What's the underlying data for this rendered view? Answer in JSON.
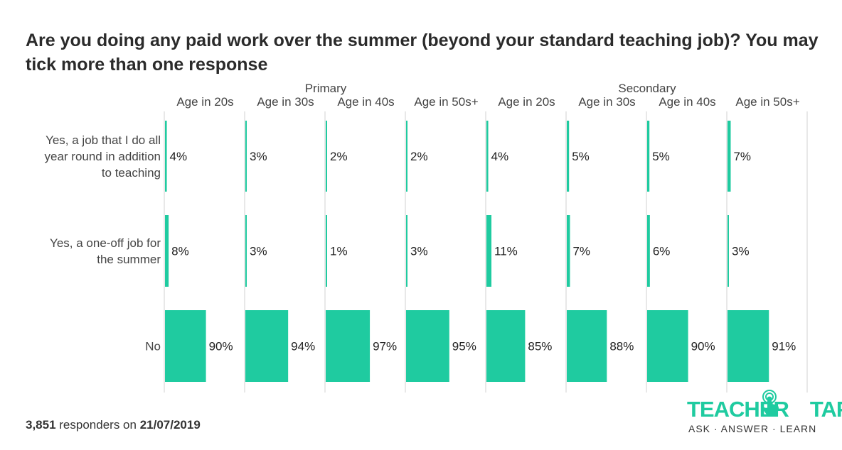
{
  "title": "Are you doing any paid work over the summer (beyond your standard teaching job)? You may tick more than one response",
  "footer": {
    "count": "3,851",
    "middle": " responders on ",
    "date": "21/07/2019"
  },
  "logo": {
    "brand_left": "TEACHER",
    "brand_right": "TAPP",
    "tagline": "ASK · ANSWER · LEARN"
  },
  "colors": {
    "bar": "#1fcba0",
    "grid": "#d0d0d0",
    "text": "#444444"
  },
  "chart_data": {
    "type": "bar",
    "orientation": "horizontal",
    "title": "Are you doing any paid work over the summer (beyond your standard teaching job)? You may tick more than one response",
    "groups": [
      {
        "name": "Primary",
        "columns": [
          "Age in 20s",
          "Age in 30s",
          "Age in 40s",
          "Age in 50s+"
        ]
      },
      {
        "name": "Secondary",
        "columns": [
          "Age in 20s",
          "Age in 30s",
          "Age in 40s",
          "Age in 50s+"
        ]
      }
    ],
    "rows": [
      {
        "label": "Yes, a job that I do all year round in addition to teaching",
        "lines": [
          "Yes, a job that I do all",
          "year round in addition",
          "to teaching"
        ],
        "values": [
          4,
          3,
          2,
          2,
          4,
          5,
          5,
          7
        ],
        "labels": [
          "4%",
          "3%",
          "2%",
          "2%",
          "4%",
          "5%",
          "5%",
          "7%"
        ]
      },
      {
        "label": "Yes, a one-off job for the summer",
        "lines": [
          "Yes, a one-off job for",
          "the summer"
        ],
        "values": [
          8,
          3,
          1,
          3,
          11,
          7,
          6,
          3
        ],
        "labels": [
          "8%",
          "3%",
          "1%",
          "3%",
          "11%",
          "7%",
          "6%",
          "3%"
        ]
      },
      {
        "label": "No",
        "lines": [
          "No"
        ],
        "values": [
          90,
          94,
          97,
          95,
          85,
          88,
          90,
          91
        ],
        "labels": [
          "90%",
          "94%",
          "97%",
          "95%",
          "85%",
          "88%",
          "90%",
          "91%"
        ]
      }
    ],
    "xlim": [
      0,
      100
    ],
    "value_unit": "%",
    "grid": true,
    "legend": "none"
  }
}
